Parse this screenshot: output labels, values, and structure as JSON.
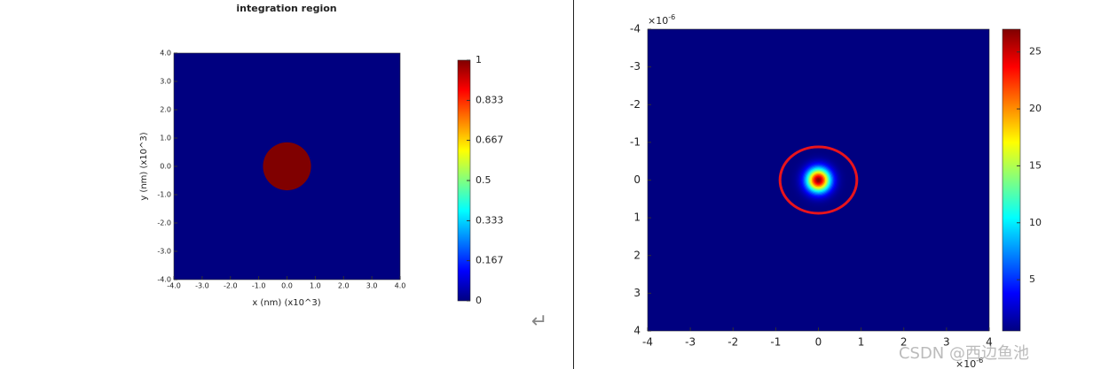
{
  "chart_data": [
    {
      "type": "heatmap",
      "title": "integration region",
      "x_label": "x (nm) (x10^3)",
      "y_label": "y (nm) (x10^3)",
      "xlim": [
        -4,
        4
      ],
      "ylim": [
        -4,
        4
      ],
      "xticks": [
        {
          "value": -4,
          "label": "-4.0"
        },
        {
          "value": -3,
          "label": "-3.0"
        },
        {
          "value": -2,
          "label": "-2.0"
        },
        {
          "value": -1,
          "label": "-1.0"
        },
        {
          "value": 0,
          "label": "0.0"
        },
        {
          "value": 1,
          "label": "1.0"
        },
        {
          "value": 2,
          "label": "2.0"
        },
        {
          "value": 3,
          "label": "3.0"
        },
        {
          "value": 4,
          "label": "4.0"
        }
      ],
      "yticks": [
        {
          "value": -4,
          "label": "-4.0"
        },
        {
          "value": -3,
          "label": "-3.0"
        },
        {
          "value": -2,
          "label": "-2.0"
        },
        {
          "value": -1,
          "label": "-1.0"
        },
        {
          "value": 0,
          "label": "0.0"
        },
        {
          "value": 1,
          "label": "1.0"
        },
        {
          "value": 2,
          "label": "2.0"
        },
        {
          "value": 3,
          "label": "3.0"
        },
        {
          "value": 4,
          "label": "4.0"
        }
      ],
      "colormap": "jet",
      "clim": [
        0,
        1
      ],
      "cticks": [
        0,
        0.167,
        0.333,
        0.5,
        0.667,
        0.833,
        1
      ],
      "background": 0,
      "disk": {
        "x": 0,
        "y": 0,
        "r": 0.85,
        "value": 1
      }
    },
    {
      "type": "heatmap",
      "x_multiplier": "×10",
      "x_exponent": "-6",
      "y_multiplier": "×10",
      "y_exponent": "-6",
      "xlim": [
        -4,
        4
      ],
      "ylim": [
        4,
        -4
      ],
      "xticks": [
        -4,
        -3,
        -2,
        -1,
        0,
        1,
        2,
        3,
        4
      ],
      "yticks": [
        -4,
        -3,
        -2,
        -1,
        0,
        1,
        2,
        3,
        4
      ],
      "colormap": "jet",
      "clim": [
        0.5,
        27
      ],
      "cticks": [
        5,
        10,
        15,
        20,
        25
      ],
      "background": 0.5,
      "spot": {
        "x": 0,
        "y": 0,
        "peak": 27,
        "sigma": 0.2
      },
      "ellipse": {
        "x": 0,
        "y": 0,
        "rx": 0.9,
        "ry": 0.88,
        "color": "#e8141c"
      }
    }
  ],
  "watermark": "CSDN @西边鱼池",
  "return_symbol": "↵"
}
